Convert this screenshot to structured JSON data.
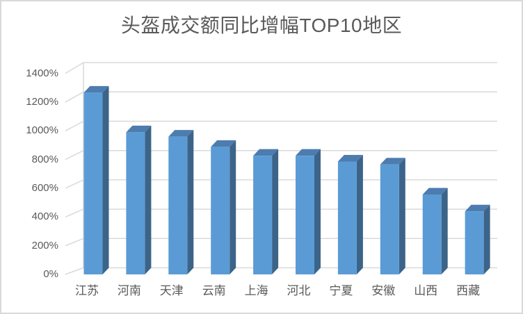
{
  "window": {
    "background": "#ffffff",
    "border_color": "#d9d9d9"
  },
  "chart_data": {
    "type": "bar",
    "style": "3d-column",
    "title": "头盔成交额同比增幅TOP10地区",
    "categories": [
      "江苏",
      "河南",
      "天津",
      "云南",
      "上海",
      "河北",
      "宁夏",
      "安徽",
      "山西",
      "西藏"
    ],
    "values": [
      1240,
      970,
      940,
      870,
      810,
      810,
      770,
      750,
      545,
      430
    ],
    "unit": "%",
    "xlabel": "",
    "ylabel": "",
    "ylim": [
      0,
      1400
    ],
    "ytick_step": 200,
    "ytick_labels": [
      "0%",
      "200%",
      "400%",
      "600%",
      "800%",
      "1000%",
      "1200%",
      "1400%"
    ],
    "grid": true,
    "legend": "none",
    "colors": {
      "bar_front": "#5b9bd5",
      "bar_top": "#4d7caf",
      "bar_side": "#3c6489",
      "gridline": "#d9d9d9",
      "axis_text": "#595959",
      "title_text": "#595959"
    }
  }
}
